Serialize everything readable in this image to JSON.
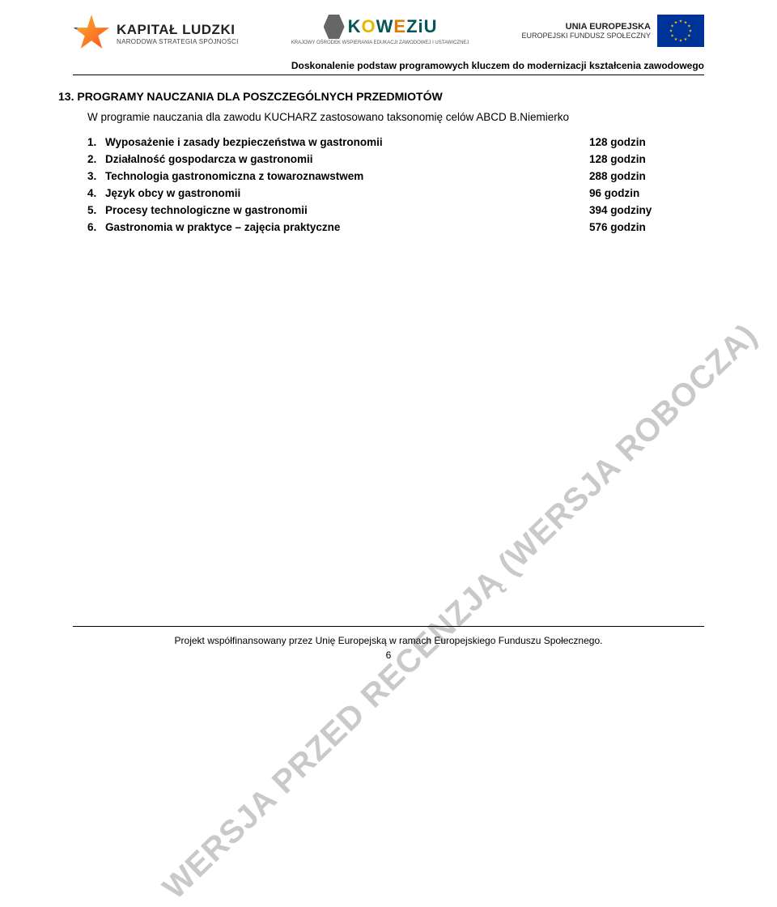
{
  "logos": {
    "kapital": {
      "title": "KAPITAŁ LUDZKI",
      "subtitle": "NARODOWA STRATEGIA SPÓJNOŚCI"
    },
    "koweziu": {
      "letters": [
        "K",
        "O",
        "W",
        "E",
        "Z",
        "i",
        "U"
      ],
      "subtitle": "KRAJOWY OŚRODEK WSPIERANIA\nEDUKACJI ZAWODOWEJ I USTAWICZNEJ"
    },
    "ue": {
      "title": "UNIA EUROPEJSKA",
      "subtitle": "EUROPEJSKI\nFUNDUSZ SPOŁECZNY"
    }
  },
  "header_subtitle": "Doskonalenie podstaw programowych kluczem do modernizacji kształcenia zawodowego",
  "section_heading": "13. PROGRAMY NAUCZANIA DLA POSZCZEGÓLNYCH PRZEDMIOTÓW",
  "intro_line": "W programie nauczania dla zawodu KUCHARZ zastosowano taksonomię celów ABCD  B.Niemierko",
  "courses": [
    {
      "num": "1.",
      "name": "Wyposażenie i zasady bezpieczeństwa w gastronomii",
      "hours": "128 godzin"
    },
    {
      "num": "2.",
      "name": "Działalność gospodarcza w gastronomii",
      "hours": "128 godzin"
    },
    {
      "num": "3.",
      "name": "Technologia gastronomiczna z towaroznawstwem",
      "hours": "288 godzin"
    },
    {
      "num": "4.",
      "name": "Język obcy w gastronomii",
      "hours": "  96 godzin"
    },
    {
      "num": "5.",
      "name": "Procesy technologiczne w gastronomii",
      "hours": "394 godziny"
    },
    {
      "num": "6.",
      "name": "Gastronomia w praktyce – zajęcia praktyczne",
      "hours": "576 godzin"
    }
  ],
  "watermark": "WERSJA PRZED RECENZJĄ (WERSJA ROBOCZA)",
  "footer_text": "Projekt współfinansowany przez Unię Europejską w ramach Europejskiego Funduszu Społecznego.",
  "page_number": "6",
  "colors": {
    "text": "#000000",
    "watermark": "#c9c9c9",
    "eu_blue": "#003399",
    "eu_gold": "#ffcc00"
  }
}
